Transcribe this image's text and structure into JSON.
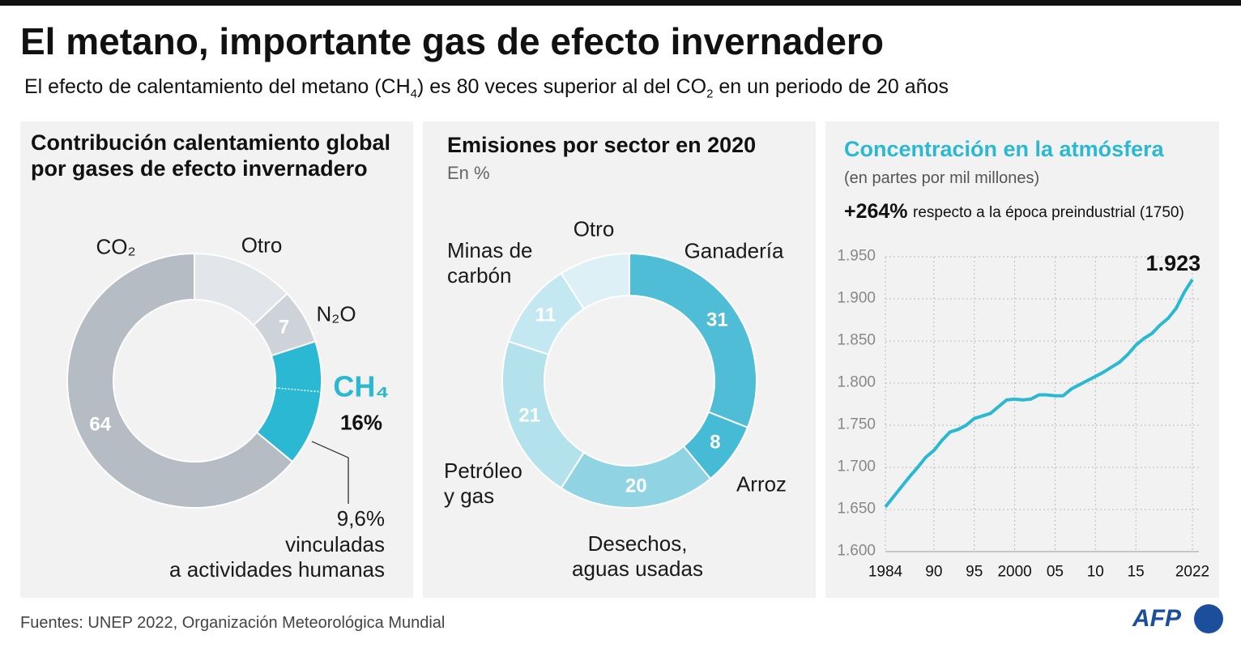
{
  "header": {
    "title": "El metano, importante gas de efecto invernadero",
    "subtitle": [
      "El efecto de calentamiento del metano (CH",
      "4",
      ") es 80 veces superior al del CO",
      "2",
      " en un periodo de 20 años"
    ]
  },
  "chart_data": [
    {
      "type": "donut",
      "title": "Contribución calentamiento global\npor gases de efecto invernadero",
      "categories": [
        "Otro",
        "N₂O",
        "CH₄",
        "CO₂"
      ],
      "values": [
        13,
        7,
        16,
        64
      ],
      "value_labels": [
        null,
        "7",
        "16%",
        "64"
      ],
      "colors": [
        "#e2e5e9",
        "#ced3d9",
        "#2ab8d3",
        "#b6bcc4"
      ],
      "annotation": {
        "value": 9.6,
        "label": "9,6%",
        "text": "vinculadas\na actividades humanas"
      }
    },
    {
      "type": "donut",
      "title": "Emisiones por sector en 2020",
      "subtitle": "En %",
      "categories": [
        "Ganadería",
        "Arroz",
        "Desechos,\naguas usadas",
        "Petróleo\ny gas",
        "Minas de\ncarbón",
        "Otro"
      ],
      "values": [
        31,
        8,
        20,
        21,
        11,
        9
      ],
      "value_labels": [
        "31",
        "8",
        "20",
        "21",
        "11",
        null
      ],
      "colors": [
        "#4fbdd6",
        "#45bbd5",
        "#90d4e4",
        "#b3e1ec",
        "#c4e8f1",
        "#dcf0f5"
      ]
    },
    {
      "type": "line",
      "title": "Concentración en la atmósfera",
      "subtitle": "(en partes por mil millones)",
      "annotation": {
        "label": "+264%",
        "text": "respecto a la época preindustrial (1750)"
      },
      "color": "#2ab8d3",
      "x": [
        1984,
        1985,
        1986,
        1987,
        1988,
        1989,
        1990,
        1991,
        1992,
        1993,
        1994,
        1995,
        1996,
        1997,
        1998,
        1999,
        2000,
        2001,
        2002,
        2003,
        2004,
        2005,
        2006,
        2007,
        2008,
        2009,
        2010,
        2011,
        2012,
        2013,
        2014,
        2015,
        2016,
        2017,
        2018,
        2019,
        2020,
        2021,
        2022
      ],
      "values": [
        1653,
        1665,
        1677,
        1689,
        1700,
        1712,
        1720,
        1732,
        1742,
        1745,
        1750,
        1758,
        1761,
        1764,
        1772,
        1780,
        1781,
        1780,
        1781,
        1786,
        1786,
        1785,
        1785,
        1793,
        1798,
        1803,
        1808,
        1813,
        1819,
        1825,
        1834,
        1845,
        1853,
        1859,
        1869,
        1877,
        1889,
        1908,
        1923
      ],
      "value_labels": [
        null,
        null,
        null,
        null,
        null,
        null,
        null,
        null,
        null,
        null,
        null,
        null,
        null,
        null,
        null,
        null,
        null,
        null,
        null,
        null,
        null,
        null,
        null,
        null,
        null,
        null,
        null,
        null,
        null,
        null,
        null,
        null,
        null,
        null,
        null,
        null,
        null,
        null,
        "1.923"
      ],
      "xlim": [
        1984,
        2022
      ],
      "ylim": [
        1600,
        1950
      ],
      "xticks": [
        1984,
        {
          "value": 1990,
          "label": "90"
        },
        {
          "value": 1995,
          "label": "95"
        },
        2000,
        {
          "value": 2005,
          "label": "05"
        },
        {
          "value": 2010,
          "label": "10"
        },
        {
          "value": 2015,
          "label": "15"
        },
        2022
      ],
      "yticks": [
        {
          "value": 1600,
          "label": "1.600"
        },
        {
          "value": 1650,
          "label": "1.650"
        },
        {
          "value": 1700,
          "label": "1.700"
        },
        {
          "value": 1750,
          "label": "1.750"
        },
        {
          "value": 1800,
          "label": "1.800"
        },
        {
          "value": 1850,
          "label": "1.850"
        },
        {
          "value": 1900,
          "label": "1.900"
        },
        {
          "value": 1950,
          "label": "1.950"
        }
      ],
      "grid": true
    }
  ],
  "footer": {
    "source": "Fuentes: UNEP 2022, Organización Meteorológica Mundial",
    "logo": "AFP"
  }
}
